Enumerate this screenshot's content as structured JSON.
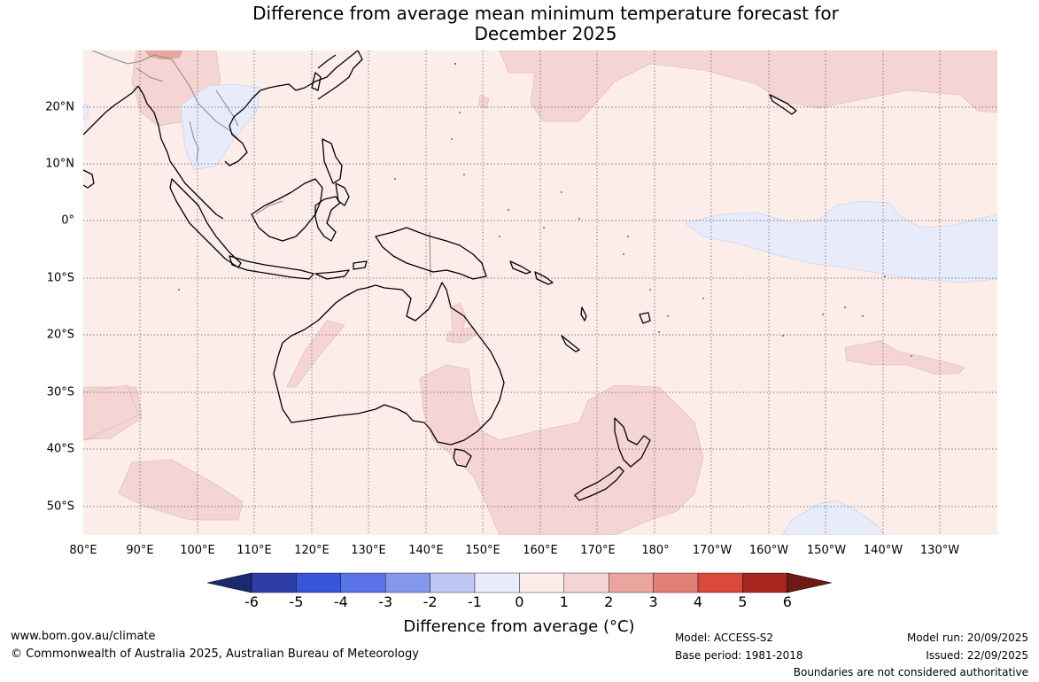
{
  "title": {
    "line1": "Difference from average mean minimum temperature forecast for",
    "line2": "December 2025"
  },
  "map": {
    "region": "Indo-Pacific: Maritime Continent, Australia, New Zealand and South Pacific",
    "lat_labels": [
      "20°N",
      "10°N",
      "0°",
      "10°S",
      "20°S",
      "30°S",
      "40°S",
      "50°S"
    ],
    "lon_labels": [
      "80°E",
      "90°E",
      "100°E",
      "110°E",
      "120°E",
      "130°E",
      "140°E",
      "150°E",
      "160°E",
      "170°E",
      "180°",
      "170°W",
      "160°W",
      "150°W",
      "140°W",
      "130°W"
    ],
    "background_color": "#fcecea",
    "anomaly_colors": {
      "0_to_1": "#fcecea",
      "1_to_2": "#f5d5d3",
      "2_to_3": "#eaa69e",
      "-1_to_0": "#e8ebfa",
      "-2_to_-1": "#bfc6f2"
    },
    "icon": "australasia-coastline-map"
  },
  "colorbar": {
    "ticks": [
      "-6",
      "-5",
      "-4",
      "-3",
      "-2",
      "-1",
      "0",
      "1",
      "2",
      "3",
      "4",
      "5",
      "6"
    ],
    "colors": [
      "#2c3da8",
      "#3655d9",
      "#5a73e6",
      "#8597eb",
      "#bfc6f2",
      "#e8ebfa",
      "#fcecea",
      "#f5d5d3",
      "#eaa69e",
      "#e07f74",
      "#d94a3b",
      "#a8251f"
    ],
    "low_extend_color": "#1b2a6e",
    "high_extend_color": "#6e1a14",
    "label": "Difference from average (°C)"
  },
  "footer": {
    "website": "www.bom.gov.au/climate",
    "copyright": "© Commonwealth of Australia 2025, Australian Bureau of Meteorology",
    "model": "Model: ACCESS-S2",
    "base_period": "Base period: 1981-2018",
    "model_run": "Model run: 20/09/2025",
    "issued": "Issued: 22/09/2025",
    "disclaimer": "Boundaries are not considered authoritative"
  }
}
